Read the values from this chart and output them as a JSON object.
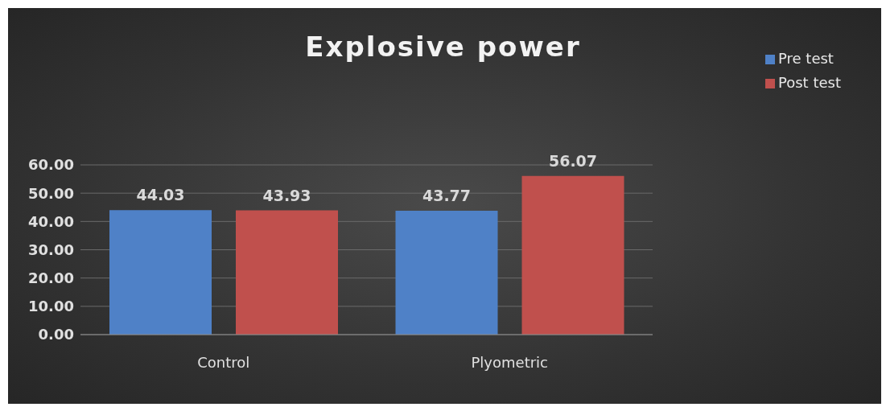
{
  "chart_data": {
    "type": "bar",
    "title": "Explosive power",
    "categories": [
      "Control",
      "Plyometric"
    ],
    "series": [
      {
        "name": "Pre test",
        "color": "#4f81c7",
        "values": [
          44.03,
          43.77
        ]
      },
      {
        "name": "Post test",
        "color": "#c0504d",
        "values": [
          43.93,
          56.07
        ]
      }
    ],
    "ylim": [
      0,
      60
    ],
    "yticks": [
      {
        "value": 0,
        "label": "0.00"
      },
      {
        "value": 10,
        "label": "10.00"
      },
      {
        "value": 20,
        "label": "20.00"
      },
      {
        "value": 30,
        "label": "30.00"
      },
      {
        "value": 40,
        "label": "40.00"
      },
      {
        "value": 50,
        "label": "50.00"
      },
      {
        "value": 60,
        "label": "60.00"
      }
    ],
    "grid": "y",
    "legend": "top right",
    "data_labels": true
  }
}
